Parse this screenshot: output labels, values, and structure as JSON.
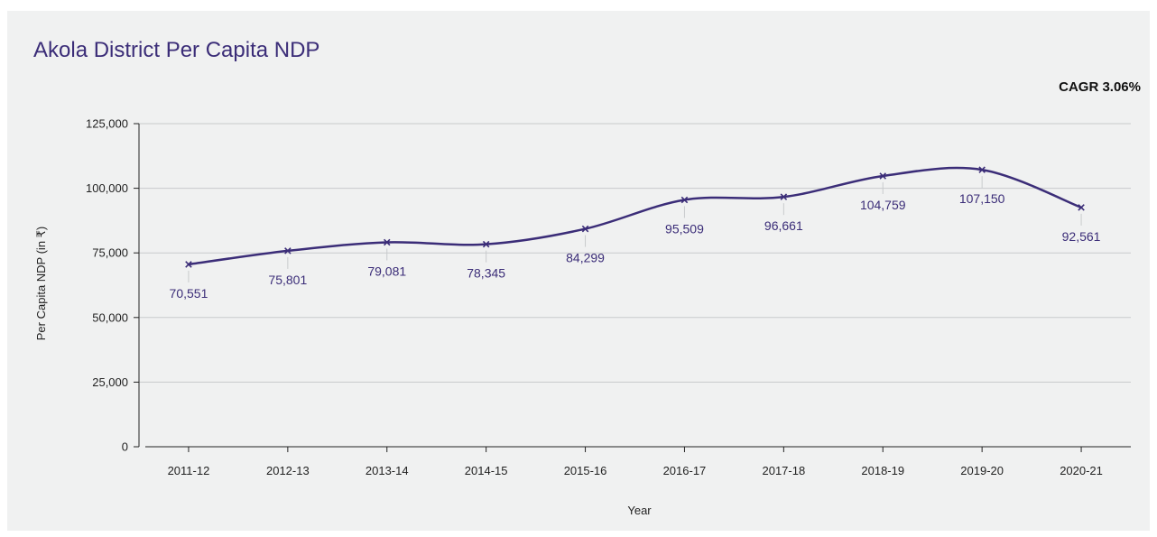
{
  "header": {
    "title": "Akola District Per Capita NDP",
    "cagr": "CAGR 3.06%"
  },
  "colors": {
    "line": "#3b2d78",
    "grid": "#c8cacc",
    "axis": "#222222",
    "panel": "#f0f1f1"
  },
  "chart_data": {
    "type": "line",
    "title": "Akola District Per Capita NDP",
    "xlabel": "Year",
    "ylabel": "Per Capita NDP (in ₹)",
    "categories": [
      "2011-12",
      "2012-13",
      "2013-14",
      "2014-15",
      "2015-16",
      "2016-17",
      "2017-18",
      "2018-19",
      "2019-20",
      "2020-21"
    ],
    "series": [
      {
        "values": [
          70551,
          75801,
          79081,
          78345,
          84299,
          95509,
          96661,
          104759,
          107150,
          92561
        ],
        "labels": [
          "70,551",
          "75,801",
          "79,081",
          "78,345",
          "84,299",
          "95,509",
          "96,661",
          "104,759",
          "107,150",
          "92,561"
        ]
      }
    ],
    "ylim": [
      0,
      125000
    ],
    "yticks": [
      0,
      25000,
      50000,
      75000,
      100000,
      125000
    ],
    "ytick_labels": [
      "0",
      "25,000",
      "50,000",
      "75,000",
      "100,000",
      "125,000"
    ],
    "grid": "horizontal",
    "marker": "x",
    "smooth": true,
    "legend": "none"
  }
}
